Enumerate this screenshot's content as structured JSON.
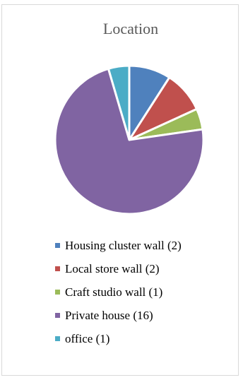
{
  "chart_data": {
    "type": "pie",
    "title": "Location",
    "legend_position": "bottom",
    "categories": [
      "Housing cluster wall",
      "Local store wall",
      "Craft studio wall",
      "Private house",
      "office"
    ],
    "values": [
      2,
      2,
      1,
      16,
      1
    ],
    "legend_labels": [
      "Housing cluster wall (2)",
      "Local store wall (2)",
      "Craft studio wall (1)",
      "Private house (16)",
      "office (1)"
    ],
    "colors": [
      "#4f81bd",
      "#c0504d",
      "#9bbb59",
      "#8064a2",
      "#4bacc6"
    ]
  }
}
